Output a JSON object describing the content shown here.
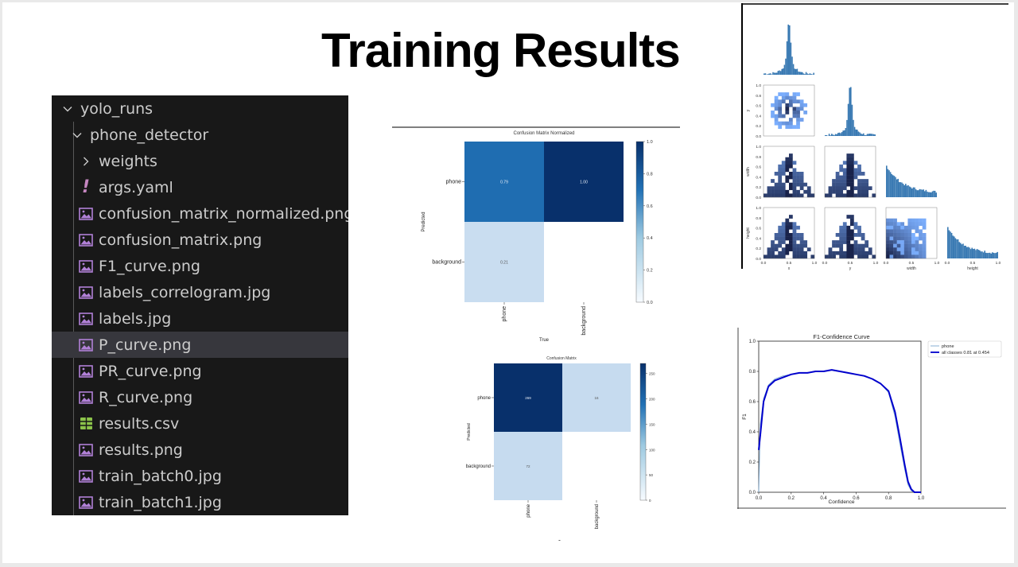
{
  "slide": {
    "title": "Training Results"
  },
  "explorer": {
    "items": [
      {
        "label": "yolo_runs",
        "icon": "chevron-down-icon",
        "depth": 0
      },
      {
        "label": "phone_detector",
        "icon": "chevron-down-icon",
        "depth": 1
      },
      {
        "label": "weights",
        "icon": "chevron-right-icon",
        "depth": 2
      },
      {
        "label": "args.yaml",
        "icon": "yaml-file-icon",
        "depth": 2
      },
      {
        "label": "confusion_matrix_normalized.png",
        "icon": "image-file-icon",
        "depth": 2
      },
      {
        "label": "confusion_matrix.png",
        "icon": "image-file-icon",
        "depth": 2
      },
      {
        "label": "F1_curve.png",
        "icon": "image-file-icon",
        "depth": 2
      },
      {
        "label": "labels_correlogram.jpg",
        "icon": "image-file-icon",
        "depth": 2
      },
      {
        "label": "labels.jpg",
        "icon": "image-file-icon",
        "depth": 2
      },
      {
        "label": "P_curve.png",
        "icon": "image-file-icon",
        "depth": 2,
        "selected": true
      },
      {
        "label": "PR_curve.png",
        "icon": "image-file-icon",
        "depth": 2
      },
      {
        "label": "R_curve.png",
        "icon": "image-file-icon",
        "depth": 2
      },
      {
        "label": "results.csv",
        "icon": "csv-file-icon",
        "depth": 2
      },
      {
        "label": "results.png",
        "icon": "image-file-icon",
        "depth": 2
      },
      {
        "label": "train_batch0.jpg",
        "icon": "image-file-icon",
        "depth": 2
      },
      {
        "label": "train_batch1.jpg",
        "icon": "image-file-icon",
        "depth": 2
      }
    ],
    "colors": {
      "image_icon": "#b180d7",
      "csv_icon": "#8bc34a",
      "yaml_icon": "#c586c0"
    }
  },
  "cm_normalized": {
    "title": "Confusion Matrix Normalized",
    "xlabel": "True",
    "ylabel": "Predicted",
    "rows": [
      "phone",
      "background"
    ],
    "cols": [
      "phone",
      "background"
    ],
    "cells": [
      {
        "r": 0,
        "c": 0,
        "value": 0.79,
        "label": "0.79",
        "color": "#1f6db1"
      },
      {
        "r": 0,
        "c": 1,
        "value": 1.0,
        "label": "1.00",
        "color": "#08306b"
      },
      {
        "r": 1,
        "c": 0,
        "value": 0.21,
        "label": "0.21",
        "color": "#c9ddf0"
      }
    ],
    "colorbar_ticks": [
      "0.0",
      "0.2",
      "0.4",
      "0.6",
      "0.8",
      "1.0"
    ]
  },
  "cm_counts": {
    "title": "Confusion Matrix",
    "xlabel": "True",
    "ylabel": "Predicted",
    "rows": [
      "phone",
      "background"
    ],
    "cols": [
      "phone",
      "background"
    ],
    "cells": [
      {
        "r": 0,
        "c": 0,
        "label": "269",
        "color": "#08306b"
      },
      {
        "r": 0,
        "c": 1,
        "label": "16",
        "color": "#c6dbef"
      },
      {
        "r": 1,
        "c": 0,
        "label": "72",
        "color": "#c6dbef"
      }
    ],
    "colorbar_ticks": [
      "0",
      "50",
      "100",
      "150",
      "200",
      "250"
    ]
  },
  "correlogram": {
    "labels": [
      "x",
      "y",
      "width",
      "height"
    ],
    "ticks": [
      "0.0",
      "0.5",
      "1.0"
    ],
    "ytick_labels": [
      "0.0",
      "0.2",
      "0.4",
      "0.6",
      "0.8",
      "1.0"
    ]
  },
  "chart_data": {
    "type": "line",
    "title": "F1-Confidence Curve",
    "xlabel": "Confidence",
    "ylabel": "F1",
    "xlim": [
      0,
      1
    ],
    "ylim": [
      0,
      1
    ],
    "xticks": [
      "0.0",
      "0.2",
      "0.4",
      "0.6",
      "0.8",
      "1.0"
    ],
    "yticks": [
      "0.0",
      "0.2",
      "0.4",
      "0.6",
      "0.8",
      "1.0"
    ],
    "legend": "top-right",
    "series": [
      {
        "name": "phone",
        "color": "#7aa6cf",
        "x": [
          0.0,
          0.01,
          0.03,
          0.06,
          0.1,
          0.15,
          0.2,
          0.25,
          0.3,
          0.35,
          0.4,
          0.45,
          0.5,
          0.55,
          0.6,
          0.65,
          0.7,
          0.75,
          0.8,
          0.84,
          0.87,
          0.9,
          0.92,
          0.94,
          0.96,
          0.98,
          1.0
        ],
        "y": [
          0.0,
          0.45,
          0.62,
          0.71,
          0.75,
          0.77,
          0.78,
          0.79,
          0.79,
          0.8,
          0.8,
          0.81,
          0.8,
          0.79,
          0.78,
          0.77,
          0.75,
          0.72,
          0.66,
          0.5,
          0.32,
          0.15,
          0.05,
          0.01,
          0.0,
          0.0,
          0.0
        ]
      },
      {
        "name": "all classes 0.81 at 0.454",
        "color": "#0000cc",
        "x": [
          0.0,
          0.01,
          0.03,
          0.06,
          0.1,
          0.15,
          0.2,
          0.25,
          0.3,
          0.35,
          0.4,
          0.45,
          0.5,
          0.55,
          0.6,
          0.65,
          0.7,
          0.75,
          0.8,
          0.84,
          0.87,
          0.9,
          0.92,
          0.94,
          0.96,
          0.98,
          1.0
        ],
        "y": [
          0.28,
          0.38,
          0.6,
          0.7,
          0.74,
          0.76,
          0.78,
          0.79,
          0.79,
          0.8,
          0.8,
          0.81,
          0.8,
          0.79,
          0.78,
          0.77,
          0.75,
          0.72,
          0.67,
          0.53,
          0.36,
          0.18,
          0.07,
          0.02,
          0.0,
          0.0,
          0.0
        ]
      }
    ]
  }
}
